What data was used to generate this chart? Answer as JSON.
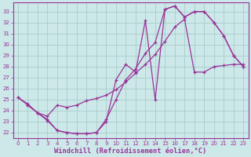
{
  "bg_color": "#cce8e8",
  "line_color": "#993399",
  "grid_color": "#aacccc",
  "xlabel": "Windchill (Refroidissement éolien,°C)",
  "xlabel_color": "#993399",
  "tick_color": "#993399",
  "ylim": [
    21.5,
    33.8
  ],
  "xlim": [
    -0.5,
    23.5
  ],
  "yticks": [
    22,
    23,
    24,
    25,
    26,
    27,
    28,
    29,
    30,
    31,
    32,
    33
  ],
  "xticks": [
    0,
    1,
    2,
    3,
    4,
    5,
    6,
    7,
    8,
    9,
    10,
    11,
    12,
    13,
    14,
    15,
    16,
    17,
    18,
    19,
    20,
    21,
    22,
    23
  ],
  "curve1_x": [
    0,
    1,
    2,
    3,
    4,
    5,
    6,
    7,
    8,
    9,
    10,
    11,
    12,
    13,
    14,
    15,
    16,
    17,
    18,
    19,
    20,
    21,
    22,
    23
  ],
  "curve1_y": [
    25.2,
    24.6,
    23.8,
    23.1,
    22.2,
    22.0,
    21.9,
    21.9,
    22.0,
    23.2,
    25.0,
    26.8,
    27.8,
    29.2,
    30.2,
    33.2,
    33.5,
    32.5,
    33.0,
    33.0,
    32.0,
    30.8,
    29.0,
    28.0
  ],
  "curve2_x": [
    0,
    1,
    2,
    3,
    4,
    5,
    6,
    7,
    8,
    9,
    10,
    11,
    12,
    13,
    14,
    15,
    16,
    17,
    18,
    19,
    20,
    21,
    22,
    23
  ],
  "curve2_y": [
    25.2,
    24.5,
    23.8,
    23.5,
    24.5,
    24.3,
    24.5,
    24.9,
    25.1,
    25.4,
    25.9,
    26.6,
    27.4,
    28.2,
    29.1,
    30.3,
    31.6,
    32.3,
    27.5,
    27.5,
    28.0,
    28.1,
    28.2,
    28.2
  ],
  "curve3_x": [
    1,
    2,
    3,
    4,
    5,
    6,
    7,
    8,
    9,
    10,
    11,
    12,
    13,
    14,
    15,
    16,
    17,
    18,
    19,
    20,
    21,
    22,
    23
  ],
  "curve3_y": [
    24.5,
    23.8,
    23.2,
    22.2,
    22.0,
    21.9,
    21.9,
    22.0,
    23.0,
    26.8,
    28.2,
    27.5,
    32.2,
    25.0,
    33.2,
    33.5,
    32.5,
    33.0,
    33.0,
    32.0,
    30.8,
    29.0,
    28.0
  ]
}
